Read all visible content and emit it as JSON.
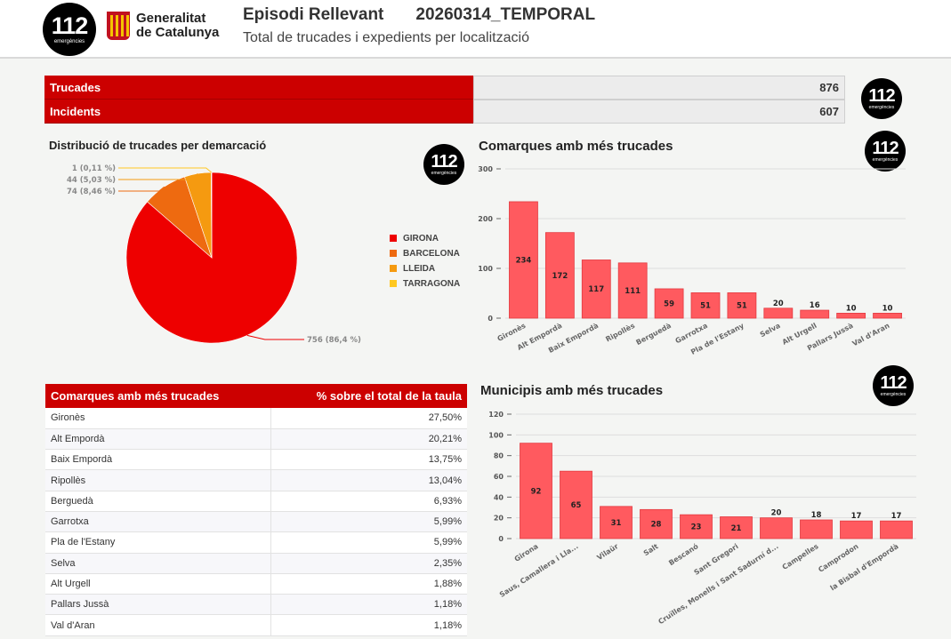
{
  "header": {
    "logo_num": "112",
    "logo_sub": "emergències",
    "gencat_line1": "Generalitat",
    "gencat_line2": "de Catalunya",
    "title": "Episodi Rellevant",
    "code": "20260314_TEMPORAL",
    "subtitle": "Total de trucades i expedients per localització"
  },
  "kpis": [
    {
      "label": "Trucades",
      "value": "876"
    },
    {
      "label": "Incidents",
      "value": "607"
    }
  ],
  "colors": {
    "brand_red": "#cc0000",
    "bar": "#ff5a5f",
    "girona": "#ee0000",
    "barcelona": "#ee6a10",
    "lleida": "#f59a10",
    "tarragona": "#ffc820"
  },
  "chart_data": [
    {
      "type": "pie",
      "title": "Distribució de trucades per demarcació",
      "slices": [
        {
          "name": "GIRONA",
          "value": 756,
          "label": "756 (86,4 %)",
          "color": "#ee0000"
        },
        {
          "name": "BARCELONA",
          "value": 74,
          "label": "74 (8,46 %)",
          "color": "#ee6a10"
        },
        {
          "name": "LLEIDA",
          "value": 44,
          "label": "44 (5,03 %)",
          "color": "#f59a10"
        },
        {
          "name": "TARRAGONA",
          "value": 1,
          "label": "1 (0,11 %)",
          "color": "#ffc820"
        }
      ],
      "legend_position": "right"
    },
    {
      "type": "bar",
      "title": "Comarques amb més trucades",
      "categories": [
        "Gironès",
        "Alt Empordà",
        "Baix Empordà",
        "Ripollès",
        "Berguedà",
        "Garrotxa",
        "Pla de l'Estany",
        "Selva",
        "Alt Urgell",
        "Pallars Jussà",
        "Val d'Aran"
      ],
      "values": [
        234,
        172,
        117,
        111,
        59,
        51,
        51,
        20,
        16,
        10,
        10
      ],
      "ylim": [
        0,
        300
      ],
      "yticks": [
        0,
        100,
        200,
        300
      ]
    },
    {
      "type": "bar",
      "title": "Municipis amb més trucades",
      "categories": [
        "Girona",
        "Saus, Camallera i Lla...",
        "Vilaür",
        "Salt",
        "Bescanó",
        "Sant Gregori",
        "Cruïlles, Monells i Sant Sadurní d...",
        "Campelles",
        "Camprodon",
        "la Bisbal d'Empordà"
      ],
      "values": [
        92,
        65,
        31,
        28,
        23,
        21,
        20,
        18,
        17,
        17
      ],
      "ylim": [
        0,
        120
      ],
      "yticks": [
        0,
        20,
        40,
        60,
        80,
        100,
        120
      ]
    }
  ],
  "table": {
    "headers": [
      "Comarques amb més trucades",
      "% sobre el total de la taula"
    ],
    "rows": [
      [
        "Gironès",
        "27,50%"
      ],
      [
        "Alt Empordà",
        "20,21%"
      ],
      [
        "Baix Empordà",
        "13,75%"
      ],
      [
        "Ripollès",
        "13,04%"
      ],
      [
        "Berguedà",
        "6,93%"
      ],
      [
        "Garrotxa",
        "5,99%"
      ],
      [
        "Pla de l'Estany",
        "5,99%"
      ],
      [
        "Selva",
        "2,35%"
      ],
      [
        "Alt Urgell",
        "1,88%"
      ],
      [
        "Pallars Jussà",
        "1,18%"
      ],
      [
        "Val d'Aran",
        "1,18%"
      ]
    ]
  }
}
